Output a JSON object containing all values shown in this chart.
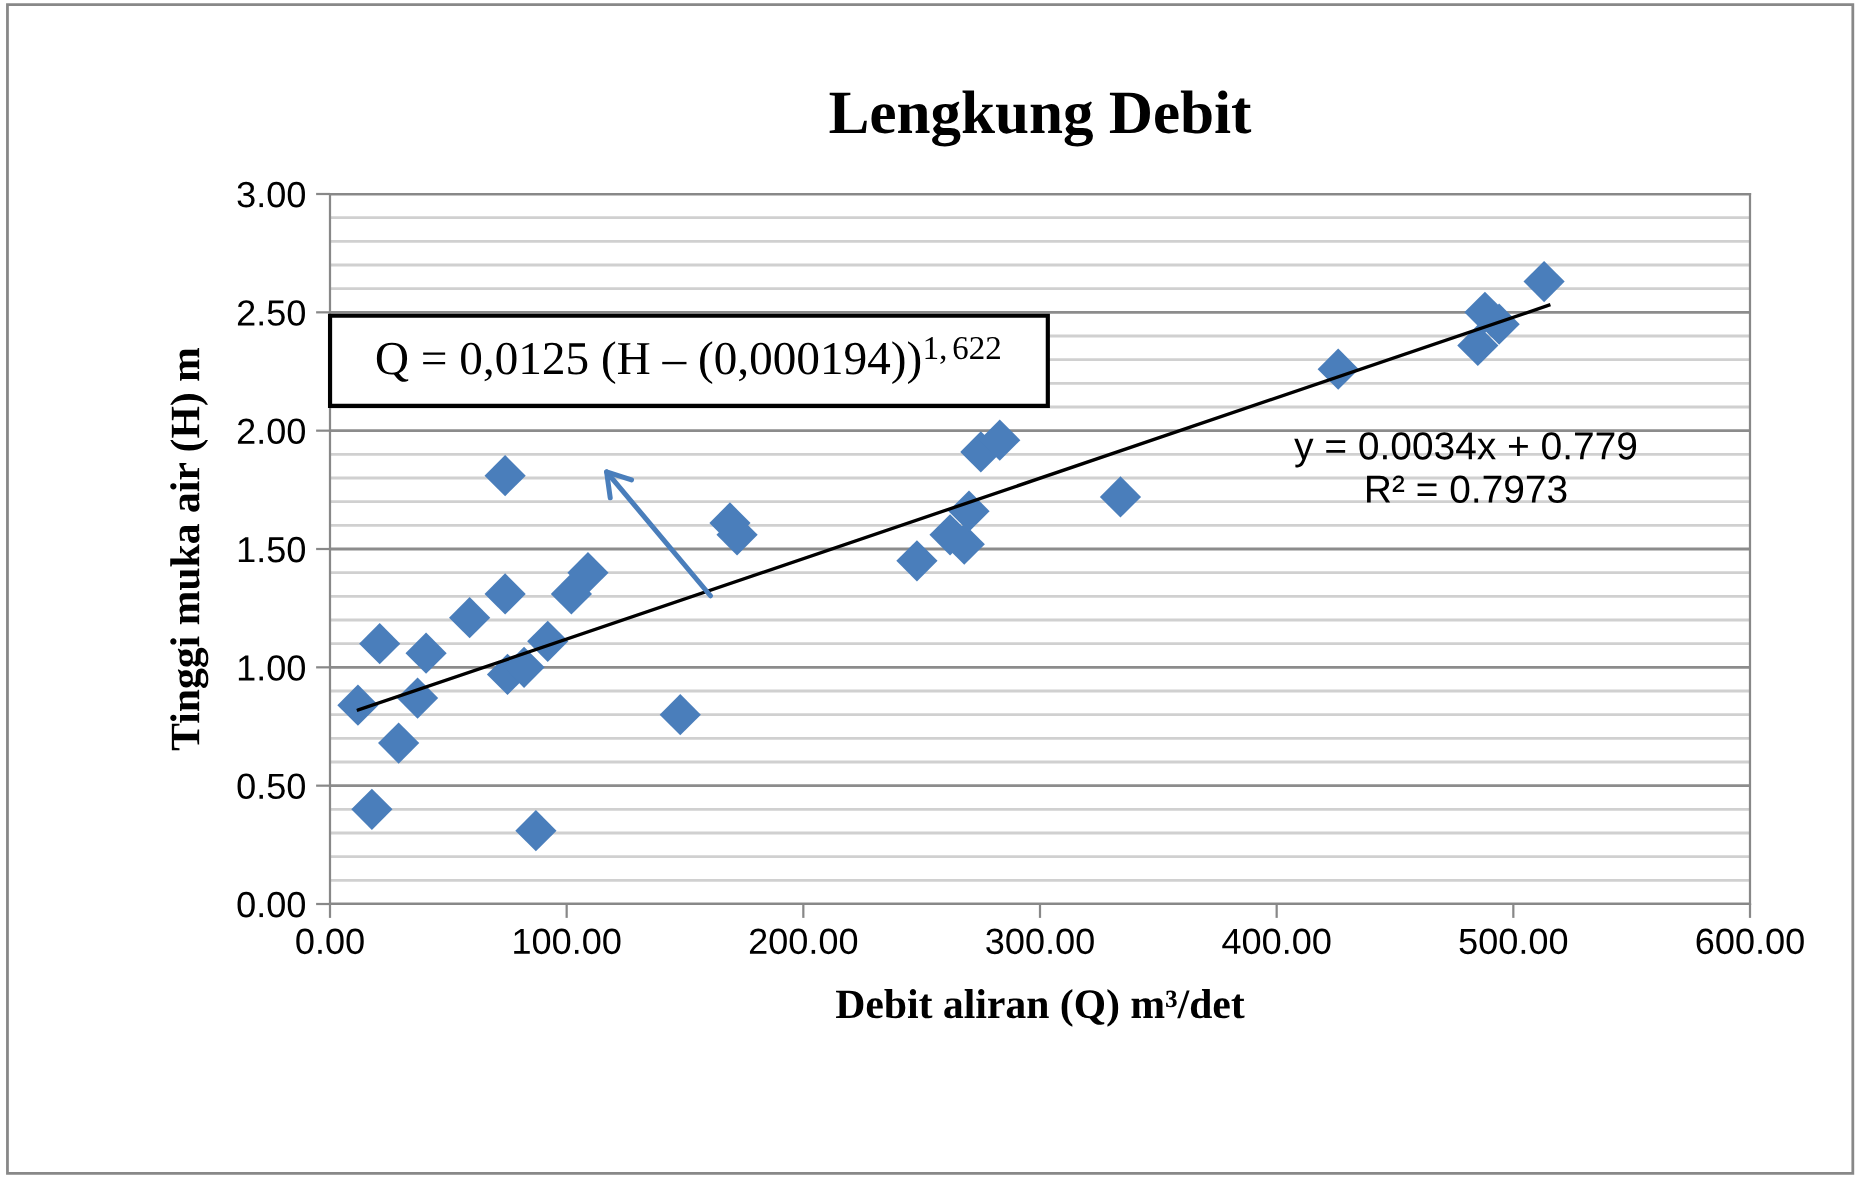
{
  "chart_data": {
    "type": "scatter",
    "title": "Lengkung Debit",
    "xlabel": "Debit aliran (Q) m³/det",
    "ylabel": "Tinggi muka air (H) m",
    "series": [
      {
        "color": "#4a7ebb",
        "marker": "diamond",
        "x": [
          11.8,
          17.7,
          21,
          29,
          37,
          40.6,
          59,
          74,
          74,
          75,
          82,
          87,
          92,
          102,
          109,
          148,
          169,
          172,
          248,
          262,
          268,
          270,
          275,
          283,
          334,
          426,
          485,
          488,
          494,
          513
        ],
        "values": [
          0.84,
          0.4,
          1.1,
          0.68,
          0.87,
          1.06,
          1.21,
          1.81,
          1.31,
          0.97,
          1.0,
          0.31,
          1.11,
          1.31,
          1.4,
          0.8,
          1.61,
          1.56,
          1.45,
          1.56,
          1.52,
          1.66,
          1.91,
          1.96,
          1.72,
          2.26,
          2.36,
          2.5,
          2.45,
          2.63
        ]
      },
      {
        "type": "line",
        "color": "#000000",
        "marker": "none",
        "x": [
          12,
          515
        ],
        "values": [
          0.82,
          2.53
        ]
      }
    ],
    "xlim": [
      0,
      600
    ],
    "xticks": [
      {
        "value": 0,
        "label": "0.00"
      },
      {
        "value": 100,
        "label": "100.00"
      },
      {
        "value": 200,
        "label": "200.00"
      },
      {
        "value": 300,
        "label": "300.00"
      },
      {
        "value": 400,
        "label": "400.00"
      },
      {
        "value": 500,
        "label": "500.00"
      },
      {
        "value": 600,
        "label": "600.00"
      }
    ],
    "ylim": [
      0,
      3
    ],
    "yticks": [
      {
        "value": 0,
        "label": "0.00"
      },
      {
        "value": 0.5,
        "label": "0.50"
      },
      {
        "value": 1,
        "label": "1.00"
      },
      {
        "value": 1.5,
        "label": "1.50"
      },
      {
        "value": 2,
        "label": "2.00"
      },
      {
        "value": 2.5,
        "label": "2.50"
      },
      {
        "value": 3,
        "label": "3.00"
      }
    ],
    "grid": "y",
    "legend": false,
    "annotations": [
      "Q = 0,0125 (H – (0,000194))$^{1,622}$",
      "y = 0.0034x + 0.779\nR² = 0.7973"
    ]
  }
}
